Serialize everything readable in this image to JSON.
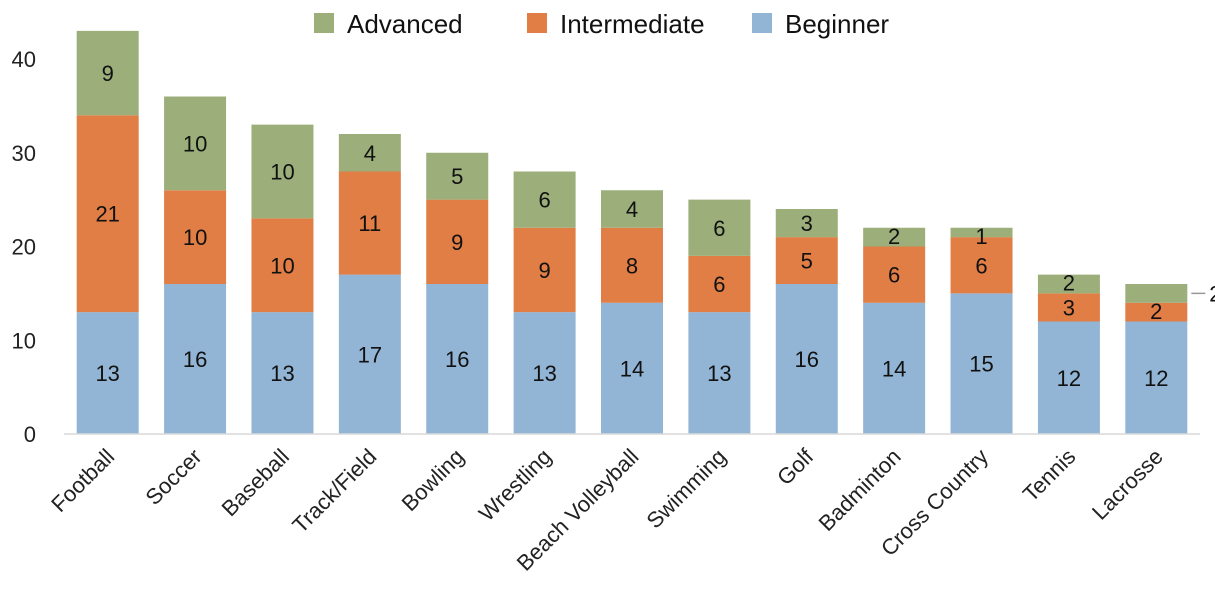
{
  "chart_data": {
    "type": "bar",
    "stacked": true,
    "categories": [
      "Football",
      "Soccer",
      "Baseball",
      "Track/Field",
      "Bowling",
      "Wrestling",
      "Beach Volleyball",
      "Swimming",
      "Golf",
      "Badminton",
      "Cross Country",
      "Tennis",
      "Lacrosse"
    ],
    "series": [
      {
        "name": "Beginner",
        "color": "#93B5D5",
        "values": [
          13,
          16,
          13,
          17,
          16,
          13,
          14,
          13,
          16,
          14,
          15,
          12,
          12
        ]
      },
      {
        "name": "Intermediate",
        "color": "#E07E45",
        "values": [
          21,
          10,
          10,
          11,
          9,
          9,
          8,
          6,
          5,
          6,
          6,
          3,
          2
        ]
      },
      {
        "name": "Advanced",
        "color": "#9CAF7A",
        "values": [
          9,
          10,
          10,
          4,
          5,
          6,
          4,
          6,
          3,
          2,
          1,
          2,
          2
        ]
      }
    ],
    "legend_order": [
      "Advanced",
      "Intermediate",
      "Beginner"
    ],
    "legend_position": "top",
    "ylim": [
      0,
      40
    ],
    "yticks": [
      0,
      10,
      20,
      30,
      40
    ],
    "grid": false,
    "title": "",
    "xlabel": "",
    "ylabel": ""
  }
}
